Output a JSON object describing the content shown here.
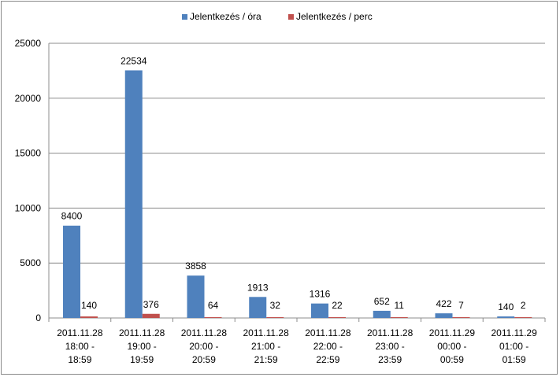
{
  "chart_data": {
    "type": "bar",
    "title": "",
    "xlabel": "",
    "ylabel": "",
    "ylim": [
      0,
      25000
    ],
    "yticks": [
      0,
      5000,
      10000,
      15000,
      20000,
      25000
    ],
    "grid": true,
    "legend_position": "top",
    "categories": [
      [
        "2011.11.28",
        "18:00 -",
        "18:59"
      ],
      [
        "2011.11.28",
        "19:00 -",
        "19:59"
      ],
      [
        "2011.11.28",
        "20:00 -",
        "20:59"
      ],
      [
        "2011.11.28",
        "21:00 -",
        "21:59"
      ],
      [
        "2011.11.28",
        "22:00 -",
        "22:59"
      ],
      [
        "2011.11.28",
        "23:00 -",
        "23:59"
      ],
      [
        "2011.11.29",
        "00:00 -",
        "00:59"
      ],
      [
        "2011.11.29",
        "01:00 -",
        "01:59"
      ]
    ],
    "series": [
      {
        "name": "Jelentkezés / óra",
        "color": "#4f81bd",
        "values": [
          8400,
          22534,
          3858,
          1913,
          1316,
          652,
          422,
          140
        ]
      },
      {
        "name": "Jelentkezés / perc",
        "color": "#c0504d",
        "values": [
          140,
          376,
          64,
          32,
          22,
          11,
          7,
          2
        ]
      }
    ]
  }
}
